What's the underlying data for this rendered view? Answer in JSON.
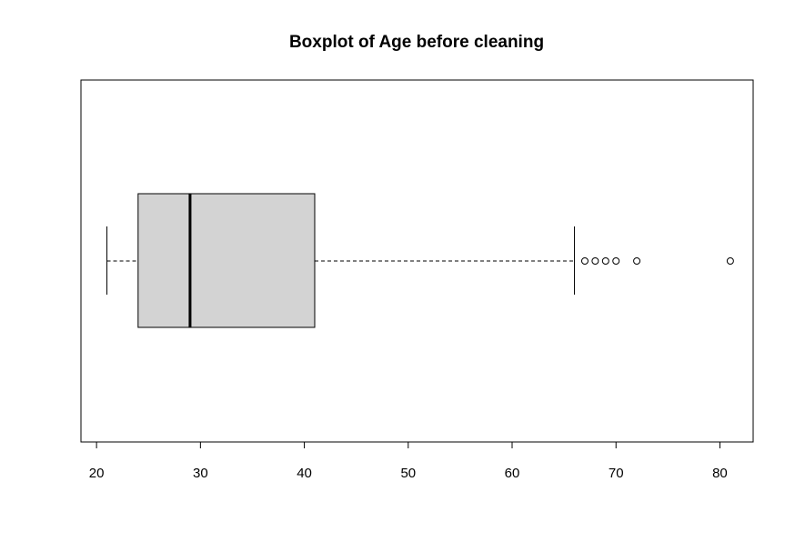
{
  "chart_data": {
    "type": "boxplot",
    "orientation": "horizontal",
    "title": "Boxplot of Age before cleaning",
    "xlabel": "",
    "ylabel": "",
    "xlim": [
      18.5,
      83.2
    ],
    "x_ticks": [
      20,
      30,
      40,
      50,
      60,
      70,
      80
    ],
    "x_tick_labels": [
      "20",
      "30",
      "40",
      "50",
      "60",
      "70",
      "80"
    ],
    "box": {
      "whisker_low": 21,
      "q1": 24,
      "median": 29,
      "q3": 41,
      "whisker_high": 66
    },
    "outliers": [
      67,
      68,
      69,
      70,
      72,
      81
    ],
    "box_fill": "#d3d3d3",
    "line_color": "#000000",
    "grid": false,
    "legend": "none"
  }
}
